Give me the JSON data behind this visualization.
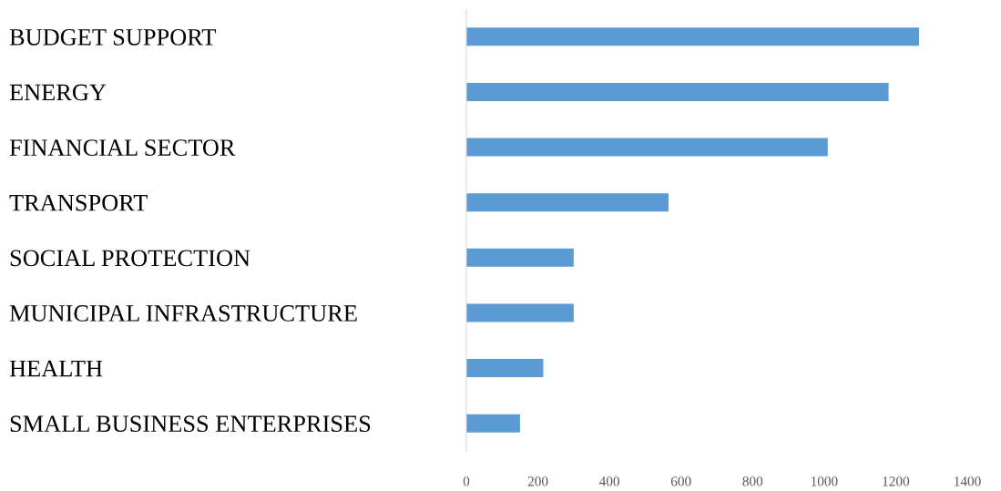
{
  "chart_data": {
    "type": "bar",
    "orientation": "horizontal",
    "categories": [
      "BUDGET SUPPORT",
      "ENERGY",
      "FINANCIAL SECTOR",
      "TRANSPORT",
      "SOCIAL PROTECTION",
      "MUNICIPAL INFRASTRUCTURE",
      "HEALTH",
      "SMALL BUSINESS ENTERPRISES"
    ],
    "values": [
      1265,
      1180,
      1010,
      565,
      300,
      300,
      215,
      150
    ],
    "color": "#5b9bd5",
    "xlim": [
      0,
      1400
    ],
    "xticks": [
      0,
      200,
      400,
      600,
      800,
      1000,
      1200,
      1400
    ],
    "grid": false,
    "legend": false
  }
}
